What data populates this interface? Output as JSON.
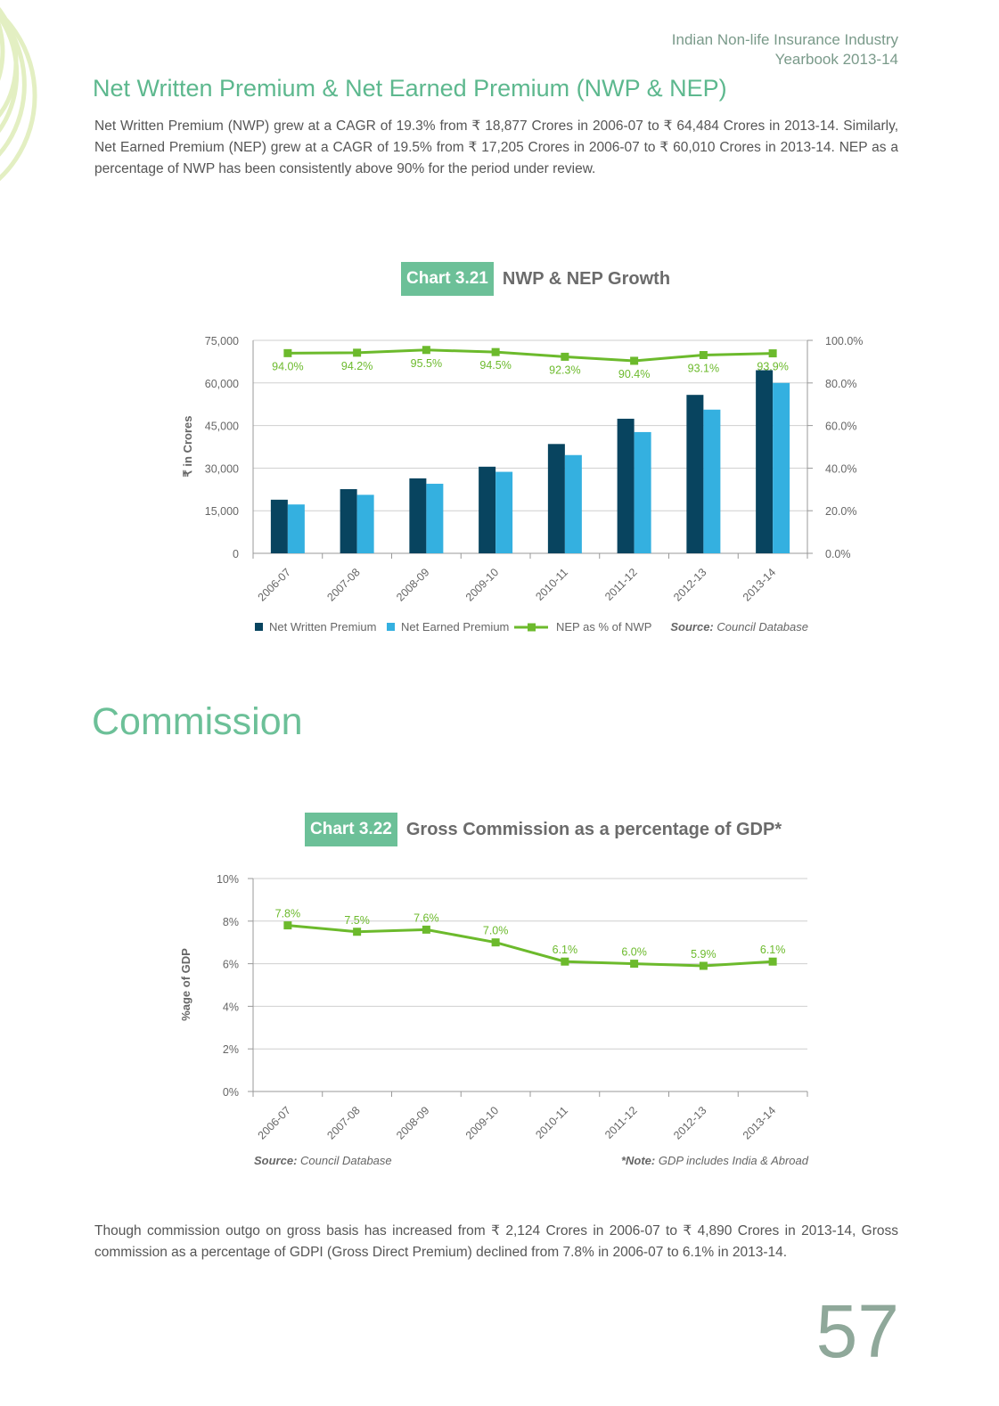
{
  "header": {
    "line1": "Indian Non-life Insurance Industry",
    "line2": "Yearbook 2013-14"
  },
  "section_title": "Net Written Premium & Net Earned Premium (NWP & NEP)",
  "paragraph1": "Net Written Premium (NWP) grew at a CAGR of 19.3% from ₹ 18,877 Crores in 2006-07 to ₹ 64,484 Crores in 2013-14. Similarly, Net Earned Premium (NEP) grew at a CAGR of 19.5% from ₹ 17,205 Crores in 2006-07 to ₹ 60,010 Crores in 2013-14. NEP as a percentage of NWP has been consistently above 90% for the period under review.",
  "commission_title": "Commission",
  "paragraph2": "Though commission outgo on gross basis has increased from ₹ 2,124 Crores in 2006-07 to ₹ 4,890 Crores in 2013-14, Gross commission as a percentage of GDPI (Gross Direct Premium) declined from 7.8% in 2006-07 to 6.1% in 2013-14.",
  "page_number": "57",
  "colors": {
    "nwp": "#08445f",
    "nep": "#34b0e0",
    "ratio": "#6cba2c",
    "accent": "#6cc098"
  },
  "chart1_heading": {
    "tag": "Chart 3.21",
    "title": "NWP & NEP Growth"
  },
  "chart2_heading": {
    "tag": "Chart 3.22",
    "title": "Gross Commission as a percentage of GDP*"
  },
  "chart_data": [
    {
      "type": "bar",
      "title": "NWP & NEP Growth",
      "categories": [
        "2006-07",
        "2007-08",
        "2008-09",
        "2009-10",
        "2010-11",
        "2011-12",
        "2012-13",
        "2013-14"
      ],
      "ylabel": "₹ in Crores",
      "ylim": [
        0,
        75000
      ],
      "yticks": [
        "0",
        "15,000",
        "30,000",
        "45,000",
        "60,000",
        "75,000"
      ],
      "y2lim": [
        0,
        100
      ],
      "y2ticks": [
        "0.0%",
        "20.0%",
        "40.0%",
        "60.0%",
        "80.0%",
        "100.0%"
      ],
      "grid": true,
      "legend_position": "bottom",
      "series": [
        {
          "name": "Net Written Premium",
          "type": "bar",
          "values": [
            18877,
            22600,
            26400,
            30500,
            38500,
            47400,
            55800,
            64484
          ]
        },
        {
          "name": "Net Earned Premium",
          "type": "bar",
          "values": [
            17205,
            20600,
            24500,
            28700,
            34600,
            42700,
            50600,
            60010
          ]
        },
        {
          "name": "NEP as % of NWP",
          "type": "line",
          "axis": "right",
          "values": [
            94.0,
            94.2,
            95.5,
            94.5,
            92.3,
            90.4,
            93.1,
            93.9
          ],
          "labels": [
            "94.0%",
            "94.2%",
            "95.5%",
            "94.5%",
            "92.3%",
            "90.4%",
            "93.1%",
            "93.9%"
          ]
        }
      ],
      "source_label": "Source:",
      "source_text": "Council Database"
    },
    {
      "type": "line",
      "title": "Gross Commission as a percentage of GDP*",
      "categories": [
        "2006-07",
        "2007-08",
        "2008-09",
        "2009-10",
        "2010-11",
        "2011-12",
        "2012-13",
        "2013-14"
      ],
      "ylabel": "%age of GDP",
      "ylim": [
        0,
        10
      ],
      "yticks": [
        "0%",
        "2%",
        "4%",
        "6%",
        "8%",
        "10%"
      ],
      "grid": true,
      "series": [
        {
          "values": [
            7.8,
            7.5,
            7.6,
            7.0,
            6.1,
            6.0,
            5.9,
            6.1
          ],
          "labels": [
            "7.8%",
            "7.5%",
            "7.6%",
            "7.0%",
            "6.1%",
            "6.0%",
            "5.9%",
            "6.1%"
          ]
        }
      ],
      "source_label": "Source:",
      "source_text": "Council Database",
      "note_label": "*Note:",
      "note_text": "GDP includes India & Abroad"
    }
  ]
}
